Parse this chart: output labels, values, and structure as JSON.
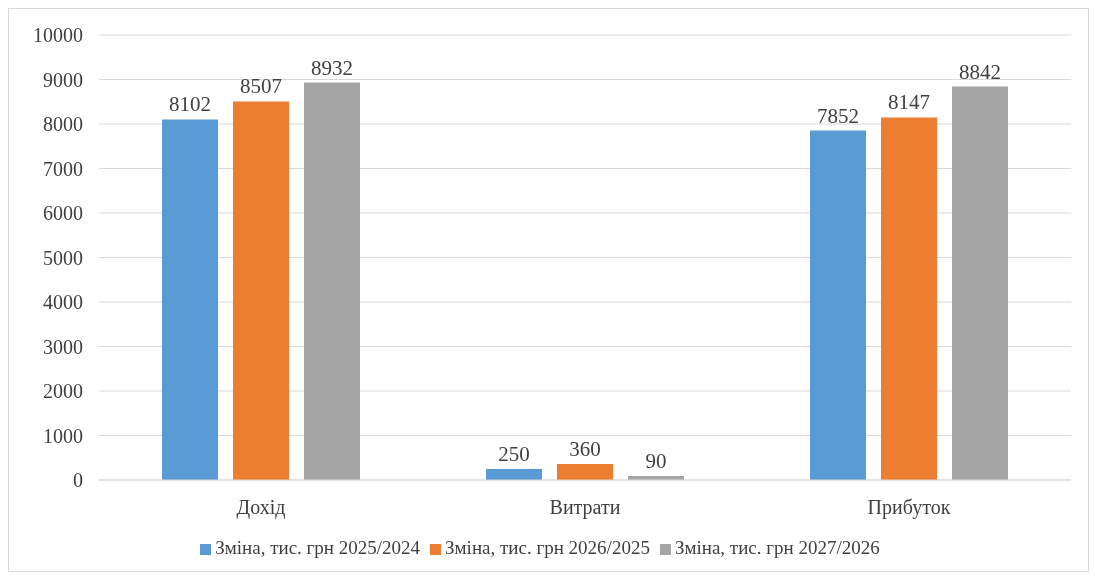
{
  "chart_data": {
    "type": "bar",
    "categories": [
      "Дохід",
      "Витрати",
      "Прибуток"
    ],
    "series": [
      {
        "name": "Зміна, тис. грн 2025/2024",
        "color": "#5b9bd5",
        "values": [
          8102,
          250,
          7852
        ]
      },
      {
        "name": "Зміна, тис. грн 2026/2025",
        "color": "#ed7d31",
        "values": [
          8507,
          360,
          8147
        ]
      },
      {
        "name": "Зміна, тис. грн 2027/2026",
        "color": "#a5a5a5",
        "values": [
          8932,
          90,
          8842
        ]
      }
    ],
    "ylim": [
      0,
      10000
    ],
    "yticks": [
      0,
      1000,
      2000,
      3000,
      4000,
      5000,
      6000,
      7000,
      8000,
      9000,
      10000
    ],
    "grid": "y",
    "legend": "bottom",
    "data_labels": true
  }
}
